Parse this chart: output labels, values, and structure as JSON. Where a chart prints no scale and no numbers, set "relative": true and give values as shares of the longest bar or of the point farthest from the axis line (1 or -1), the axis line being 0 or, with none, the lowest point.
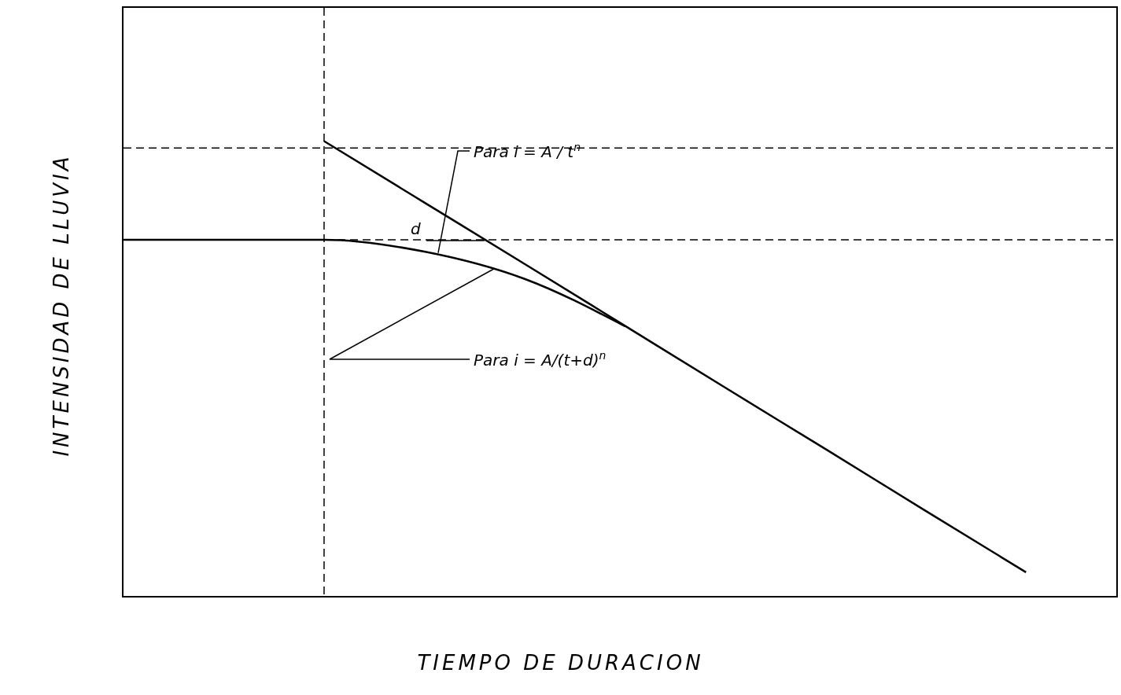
{
  "chart_data": {
    "type": "line",
    "relative": true,
    "xlabel": "TIEMPO DE DURACION",
    "ylabel": "INTENSIDAD DE LLUVIA",
    "categories": [
      null,
      null,
      null,
      null,
      null,
      null,
      null,
      null,
      null,
      null
    ],
    "series": [
      {
        "color": "#000000",
        "values": [
          null,
          null,
          1,
          0.865,
          0.73,
          0.594,
          0.458,
          0.323,
          0.187,
          0.052
        ]
      },
      {
        "color": "#000000",
        "values": [
          0.783,
          0.783,
          0.783,
          0.757,
          0.697,
          0.593,
          null,
          null,
          null,
          null
        ]
      }
    ],
    "ref_lines": [
      {
        "axis": "y",
        "value": 0.985,
        "line_style": "dashed",
        "color": "#000000"
      },
      {
        "axis": "y",
        "value": 0.783,
        "line_style": "dashed",
        "color": "#000000"
      }
    ],
    "annotations": [
      "Para  i = A / t$^{n}$",
      "Para  i = A/(t+d)$^{n}$",
      "d"
    ],
    "grid": false,
    "marker": "none",
    "line_style": "solid"
  }
}
